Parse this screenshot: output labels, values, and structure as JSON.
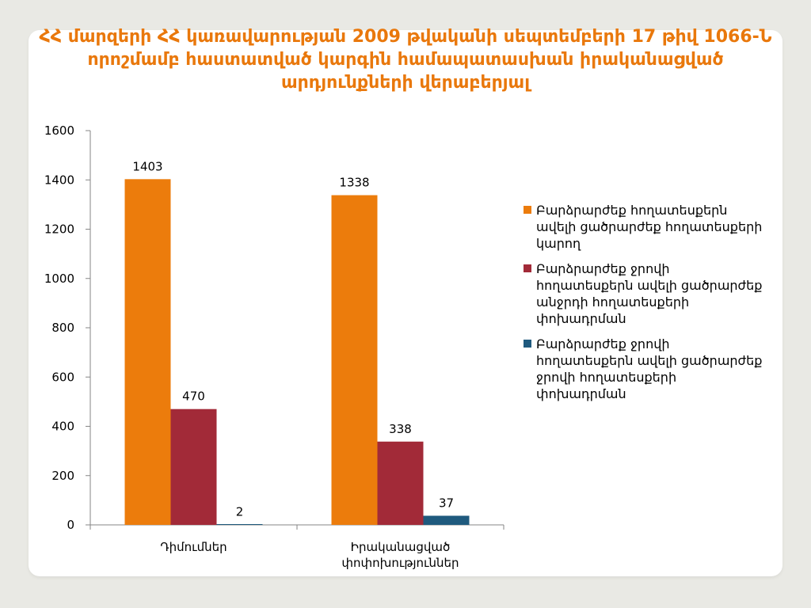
{
  "chart_data": {
    "type": "bar",
    "title": "ՀՀ մարզերի ՀՀ կառավարության 2009 թվականի սեպտեմբերի 17 թիվ 1066-Ն որոշմամբ հաստատված կարգին համապատասխան իրականացված արդյունքների վերաբերյալ",
    "categories": [
      "Դիմումներ",
      "Իրականացված փոփոխություններ"
    ],
    "series": [
      {
        "name": "Բարձրարժեք հողատեսքերն ավելի ցածրարժեք հողատեսքերի կարող",
        "color": "#ec7c0c",
        "values": [
          1403,
          1338
        ]
      },
      {
        "name": "Բարձրարժեք ջրովի հողատեսքերն ավելի ցածրարժեք անջրդի հողատեսքերի փոխադրման",
        "color": "#a22a38",
        "values": [
          470,
          338
        ]
      },
      {
        "name": "Բարձրարժեք ջրովի հողատեսքերն ավելի ցածրարժեք ջրովի հողատեսքերի փոխադրման",
        "color": "#1f5a7e",
        "values": [
          2,
          37
        ]
      }
    ],
    "ylim": [
      0,
      1600
    ],
    "yticks": [
      0,
      200,
      400,
      600,
      800,
      1000,
      1200,
      1400,
      1600
    ],
    "grid": false,
    "legend_position": "right"
  }
}
